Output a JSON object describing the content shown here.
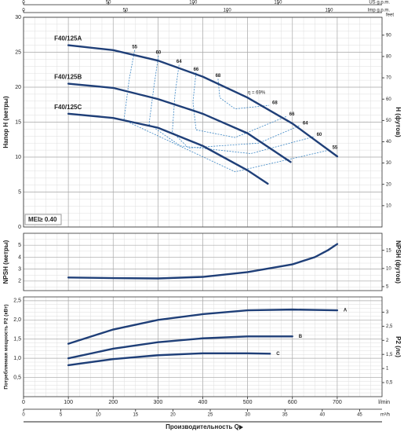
{
  "x_axes": {
    "title": "Производительность Q",
    "primary": {
      "label": "l/min",
      "lim": [
        0,
        800
      ],
      "ticks": [
        0,
        100,
        200,
        300,
        400,
        500,
        600,
        700
      ]
    },
    "m3h": {
      "label": "m³/h",
      "lim": [
        0,
        48
      ],
      "ticks": [
        0,
        5,
        10,
        15,
        20,
        25,
        30,
        35,
        40,
        45
      ]
    },
    "us_gpm": {
      "label": "US g.p.m.",
      "lim": [
        0,
        211.3
      ],
      "ticks": [
        0,
        50,
        100,
        150
      ]
    },
    "imp_gpm": {
      "label": "Imp g.p.m.",
      "lim": [
        0,
        176
      ],
      "ticks": [
        0,
        50,
        100,
        150
      ]
    }
  },
  "chart_data": [
    {
      "type": "line",
      "ylabel": "Напор H (метры)",
      "y2label": "H (футов)",
      "y2unit": "feet",
      "ylim": [
        0,
        30
      ],
      "yticks": [
        0,
        5,
        10,
        15,
        20,
        25,
        30
      ],
      "y2lim": [
        0,
        98.4
      ],
      "y2ticks": [
        10,
        20,
        30,
        40,
        50,
        60,
        70,
        80,
        90
      ],
      "grid": true,
      "minor_div": 5,
      "annotation": "MEI≥ 0.40",
      "label_side": "start",
      "series": [
        {
          "name": "F40/125A",
          "color": "#1f3f78",
          "x": [
            100,
            200,
            300,
            400,
            500,
            600,
            700
          ],
          "values": [
            26,
            25.3,
            23.8,
            21.5,
            18.5,
            14.8,
            10.1
          ]
        },
        {
          "name": "F40/125B",
          "color": "#1f3f78",
          "x": [
            100,
            200,
            300,
            400,
            500,
            596
          ],
          "values": [
            20.5,
            19.9,
            18.3,
            16.2,
            13.4,
            9.3
          ]
        },
        {
          "name": "F40/125C",
          "color": "#1f3f78",
          "x": [
            100,
            200,
            300,
            400,
            500,
            545
          ],
          "values": [
            16.2,
            15.6,
            14.2,
            11.6,
            8.1,
            6.2
          ]
        }
      ],
      "efficiency_peak": "η = 69%",
      "efficiency_color": "#3c86c4",
      "efficiency": [
        {
          "label": "55",
          "x": [
            248,
            236,
            224,
            472,
            682
          ],
          "values": [
            25.3,
            21.2,
            15.3,
            7.9,
            11.0
          ]
        },
        {
          "label": "60",
          "x": [
            301,
            291,
            280,
            350,
            507,
            647
          ],
          "values": [
            24.5,
            20.1,
            14.7,
            11.6,
            10.5,
            12.9
          ]
        },
        {
          "label": "64",
          "x": [
            347,
            338,
            332,
            368,
            525,
            616
          ],
          "values": [
            23.2,
            19.0,
            13.6,
            11.3,
            12.0,
            14.5
          ]
        },
        {
          "label": "66",
          "x": [
            385,
            378,
            385,
            472,
            586
          ],
          "values": [
            22.1,
            17.9,
            13.9,
            12.8,
            15.8
          ]
        },
        {
          "label": "68",
          "x": [
            434,
            438,
            472,
            548
          ],
          "values": [
            21.2,
            18.5,
            16.9,
            17.4
          ]
        }
      ]
    },
    {
      "type": "line",
      "ylabel": "NPSH (метры)",
      "y2label": "NPSH (футов)",
      "ylim": [
        1.2,
        6
      ],
      "yticks": [
        2,
        3,
        4,
        5
      ],
      "y2lim": [
        3.9,
        19.7
      ],
      "y2ticks": [
        5,
        10,
        15
      ],
      "grid": true,
      "minor_div": 2,
      "series": [
        {
          "color": "#1f3f78",
          "x": [
            100,
            200,
            300,
            400,
            500,
            600,
            650,
            680,
            700
          ],
          "values": [
            2.3,
            2.25,
            2.22,
            2.35,
            2.75,
            3.4,
            4.0,
            4.6,
            5.1
          ]
        }
      ]
    },
    {
      "type": "line",
      "ylabel": "Потребляемая мощность P2 (кВт)",
      "y2label": "P2 (лс)",
      "ylim": [
        0,
        2.6
      ],
      "yticks": [
        {
          "value": 0.5,
          "label": "0,5"
        },
        {
          "value": 1.0,
          "label": "1,0"
        },
        {
          "value": 1.5,
          "label": "1,5"
        },
        {
          "value": 2.0,
          "label": "2,0"
        },
        {
          "value": 2.5,
          "label": "2,5"
        }
      ],
      "y2lim": [
        0,
        3.54
      ],
      "y2ticks": [
        {
          "value": 0.5,
          "label": "0,5"
        },
        1,
        {
          "value": 1.5,
          "label": "1,5"
        },
        2,
        {
          "value": 2.5,
          "label": "2,5"
        },
        3
      ],
      "grid": true,
      "minor_div": 5,
      "label_side": "end",
      "series": [
        {
          "name": "A",
          "color": "#1f3f78",
          "x": [
            100,
            200,
            300,
            400,
            500,
            600,
            700
          ],
          "values": [
            1.38,
            1.75,
            2.0,
            2.15,
            2.25,
            2.27,
            2.25
          ]
        },
        {
          "name": "B",
          "color": "#1f3f78",
          "x": [
            100,
            200,
            300,
            400,
            500,
            600
          ],
          "values": [
            1.0,
            1.25,
            1.42,
            1.52,
            1.57,
            1.57
          ]
        },
        {
          "name": "C",
          "color": "#1f3f78",
          "x": [
            100,
            200,
            300,
            400,
            500,
            550
          ],
          "values": [
            0.82,
            0.98,
            1.08,
            1.13,
            1.13,
            1.12
          ]
        }
      ]
    }
  ]
}
